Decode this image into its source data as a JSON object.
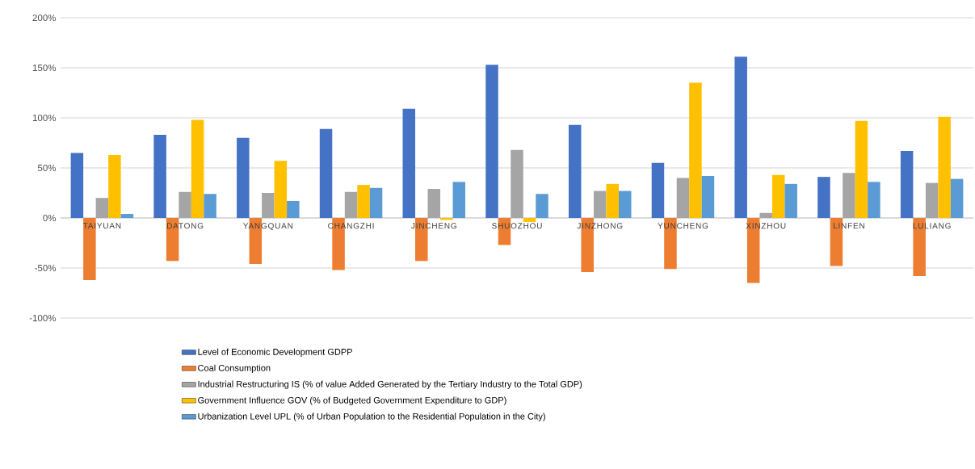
{
  "chart_data": {
    "type": "bar",
    "categories": [
      "TAIYUAN",
      "DATONG",
      "YANGQUAN",
      "CHANGZHI",
      "JINCHENG",
      "SHUOZHOU",
      "JINZHONG",
      "YUNCHENG",
      "XINZHOU",
      "LINFEN",
      "LULIANG"
    ],
    "series": [
      {
        "name": "Level of Economic Development GDPP",
        "color": "#4472c4",
        "values": [
          65,
          83,
          80,
          89,
          109,
          153,
          93,
          55,
          161,
          41,
          67
        ]
      },
      {
        "name": "Coal Consumption",
        "color": "#ed7d31",
        "values": [
          -62,
          -43,
          -46,
          -52,
          -43,
          -27,
          -54,
          -51,
          -65,
          -48,
          -58
        ]
      },
      {
        "name": "Industrial Restructuring IS (% of value Added Generated by the Tertiary Industry to the Total GDP)",
        "color": "#a5a5a5",
        "values": [
          20,
          26,
          25,
          26,
          29,
          68,
          27,
          40,
          5,
          45,
          35
        ]
      },
      {
        "name": "Government Influence GOV (% of Budgeted Government Expenditure to GDP)",
        "color": "#ffc000",
        "values": [
          63,
          98,
          57,
          33,
          -2,
          -4,
          34,
          135,
          43,
          97,
          101
        ]
      },
      {
        "name": "Urbanization Level UPL (% of Urban Population to the Residential Population in the City)",
        "color": "#5b9bd5",
        "values": [
          4,
          24,
          17,
          30,
          36,
          24,
          27,
          42,
          34,
          36,
          39
        ]
      }
    ],
    "ylim": [
      -100,
      200
    ],
    "yticks": [
      {
        "value": -100,
        "label": "-100%"
      },
      {
        "value": -50,
        "label": "-50%"
      },
      {
        "value": 0,
        "label": "0%"
      },
      {
        "value": 50,
        "label": "50%"
      },
      {
        "value": 100,
        "label": "100%"
      },
      {
        "value": 150,
        "label": "150%"
      },
      {
        "value": 200,
        "label": "200%"
      }
    ],
    "grid": "y",
    "legend": "bottom"
  }
}
